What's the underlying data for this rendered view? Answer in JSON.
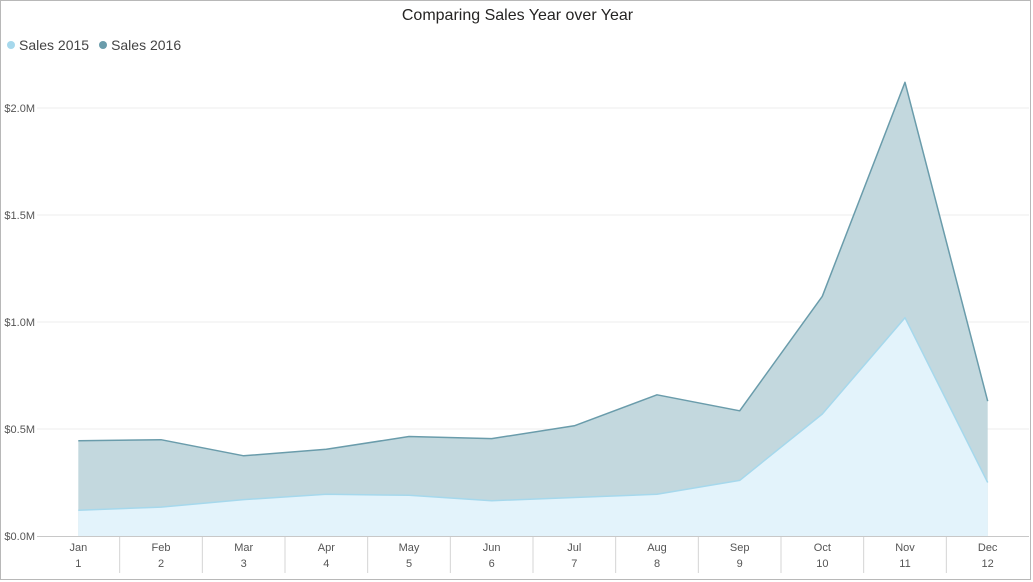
{
  "chart_data": {
    "type": "area",
    "title": "Comparing Sales Year over Year",
    "categories": [
      "Jan",
      "Feb",
      "Mar",
      "Apr",
      "May",
      "Jun",
      "Jul",
      "Aug",
      "Sep",
      "Oct",
      "Nov",
      "Dec"
    ],
    "category_numbers": [
      "1",
      "2",
      "3",
      "4",
      "5",
      "6",
      "7",
      "8",
      "9",
      "10",
      "11",
      "12"
    ],
    "series": [
      {
        "name": "Sales 2015",
        "color": "#a6d8ec",
        "fill": "#e3f3fb",
        "values": [
          0.12,
          0.135,
          0.17,
          0.195,
          0.19,
          0.165,
          0.18,
          0.195,
          0.26,
          0.57,
          1.02,
          0.25
        ]
      },
      {
        "name": "Sales 2016",
        "color": "#6a9cab",
        "fill": "#c3d8de",
        "values": [
          0.445,
          0.45,
          0.375,
          0.405,
          0.465,
          0.455,
          0.515,
          0.66,
          0.585,
          1.12,
          2.12,
          0.63
        ]
      }
    ],
    "y_ticks": [
      0,
      0.5,
      1.0,
      1.5,
      2.0
    ],
    "y_tick_labels": [
      "$0.0M",
      "$0.5M",
      "$1.0M",
      "$1.5M",
      "$2.0M"
    ],
    "ylim": [
      0,
      2.2
    ],
    "xlabel": "",
    "ylabel": "",
    "grid": true,
    "legend_position": "top-left"
  }
}
